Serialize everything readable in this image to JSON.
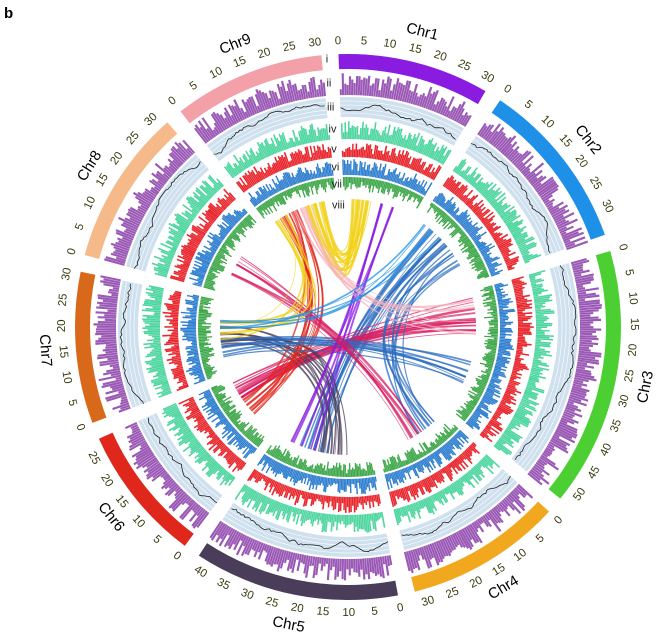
{
  "panel_label": "b",
  "track_labels": [
    "i",
    "ii",
    "iii",
    "iv",
    "v",
    "vi",
    "vii",
    "viii"
  ],
  "chromosomes": [
    {
      "name": "Chr1",
      "length": 31,
      "color": "#8a1be0",
      "ticks": [
        0,
        5,
        10,
        15,
        20,
        25,
        30
      ]
    },
    {
      "name": "Chr2",
      "length": 35,
      "color": "#1e90e8",
      "ticks": [
        0,
        5,
        10,
        15,
        20,
        25,
        30
      ]
    },
    {
      "name": "Chr3",
      "length": 53,
      "color": "#4ccf32",
      "ticks": [
        0,
        5,
        10,
        15,
        20,
        25,
        30,
        35,
        40,
        45,
        50
      ]
    },
    {
      "name": "Chr4",
      "length": 32,
      "color": "#f2a81e",
      "ticks": [
        0,
        5,
        10,
        15,
        20,
        25,
        30
      ]
    },
    {
      "name": "Chr5",
      "length": 42,
      "color": "#4a3d5a",
      "ticks": [
        0,
        5,
        10,
        15,
        20,
        25,
        30,
        35,
        40
      ]
    },
    {
      "name": "Chr6",
      "length": 28,
      "color": "#e0271c",
      "ticks": [
        0,
        5,
        10,
        15,
        20,
        25
      ]
    },
    {
      "name": "Chr7",
      "length": 31,
      "color": "#d9691a",
      "ticks": [
        0,
        5,
        10,
        15,
        20,
        25,
        30
      ]
    },
    {
      "name": "Chr8",
      "length": 32,
      "color": "#f5b98a",
      "ticks": [
        0,
        5,
        10,
        15,
        20,
        25,
        30
      ]
    },
    {
      "name": "Chr9",
      "length": 31,
      "color": "#f4a0a8",
      "ticks": [
        0,
        5,
        10,
        15,
        20,
        25,
        30
      ]
    }
  ],
  "colors": {
    "track_ii": "#9b59b6",
    "track_iii_fill": "#cfe0ee",
    "track_iii_line": "#222222",
    "track_iv": "#4fd6a0",
    "track_v": "#e8282e",
    "track_vi": "#2f7fd0",
    "track_vii": "#3ea84a",
    "links": [
      "#f2d21a",
      "#e0271c",
      "#2a6cc0",
      "#d81b60",
      "#4a3d5a",
      "#f7b2bd",
      "#8a1be0",
      "#1e90e8"
    ]
  }
}
